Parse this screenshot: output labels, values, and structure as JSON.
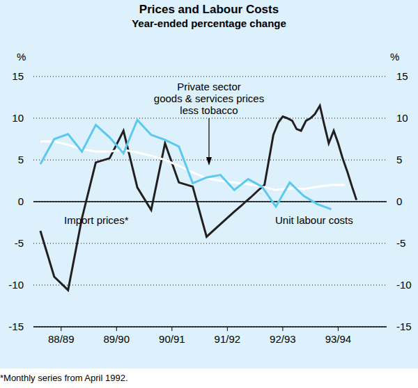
{
  "chart_data": {
    "type": "line",
    "title": "Prices and Labour Costs",
    "subtitle": "Year-ended percentage change",
    "ylabel": "%",
    "y2label": "%",
    "note": "*Monthly series from April 1992.",
    "xlim": [
      1988.5,
      1994.875
    ],
    "xticks": [
      {
        "value": 1989,
        "label": "88/89"
      },
      {
        "value": 1990,
        "label": "89/90"
      },
      {
        "value": 1991,
        "label": "90/91"
      },
      {
        "value": 1992,
        "label": "91/92"
      },
      {
        "value": 1993,
        "label": "92/93"
      },
      {
        "value": 1994,
        "label": "93/94"
      }
    ],
    "ylim": [
      -15,
      15
    ],
    "yticks": [
      -15,
      -10,
      -5,
      0,
      5,
      10,
      15
    ],
    "y2lim": [
      -15,
      15
    ],
    "y2ticks": [
      -15,
      -10,
      -5,
      0,
      5,
      10,
      15
    ],
    "grid": true,
    "series": [
      {
        "name": "Import prices*",
        "color": "#231f20",
        "x": [
          1988.625,
          1988.875,
          1989.125,
          1989.375,
          1989.625,
          1989.875,
          1990.125,
          1990.375,
          1990.625,
          1990.875,
          1991.125,
          1991.375,
          1991.625,
          1991.875,
          1992.125,
          1992.25,
          1992.33,
          1992.42,
          1992.5,
          1992.58,
          1992.67,
          1992.75,
          1992.83,
          1992.92,
          1993.0,
          1993.08,
          1993.17,
          1993.25,
          1993.33,
          1993.42,
          1993.5,
          1993.58,
          1993.67,
          1993.75,
          1993.83,
          1993.92,
          1994.0,
          1994.08,
          1994.17,
          1994.25,
          1994.33
        ],
        "values": [
          -3.5,
          -9,
          -10.6,
          -2,
          4.7,
          5.2,
          8.5,
          1.7,
          -1,
          7,
          2.3,
          1.8,
          -4.2,
          -2.7,
          -1.2,
          -0.5,
          0,
          0.5,
          1.0,
          1.5,
          2.0,
          5.0,
          8.0,
          9.5,
          10.2,
          10.0,
          9.7,
          8.7,
          8.5,
          9.7,
          10.0,
          10.5,
          11.5,
          9.2,
          7.0,
          8.5,
          7.0,
          5.2,
          3.5,
          1.8,
          0.2
        ]
      },
      {
        "name": "Private sector\ngoods & services prices\nless tobacco",
        "color": "#ffffff",
        "x": [
          1988.625,
          1988.875,
          1989.125,
          1989.375,
          1989.625,
          1989.875,
          1990.125,
          1990.375,
          1990.625,
          1990.875,
          1991.125,
          1991.375,
          1991.625,
          1991.875,
          1992.125,
          1992.375,
          1992.625,
          1992.875,
          1993.125,
          1993.375,
          1993.625,
          1993.875,
          1994.125
        ],
        "values": [
          7.2,
          7.2,
          6.8,
          6.3,
          6.0,
          6.0,
          6.2,
          5.9,
          5.5,
          5.0,
          4.3,
          3.5,
          2.8,
          2.5,
          2.3,
          2.1,
          1.8,
          1.4,
          1.6,
          1.5,
          1.8,
          2.0,
          2.0
        ]
      },
      {
        "name": "Unit labour costs",
        "color": "#5bc8f0",
        "x": [
          1988.625,
          1988.875,
          1989.125,
          1989.375,
          1989.625,
          1989.875,
          1990.125,
          1990.375,
          1990.625,
          1990.875,
          1991.125,
          1991.375,
          1991.625,
          1991.875,
          1992.125,
          1992.375,
          1992.625,
          1992.875,
          1993.125,
          1993.375,
          1993.625,
          1993.875
        ],
        "values": [
          4.5,
          7.5,
          8.1,
          6.0,
          9.2,
          7.7,
          5.8,
          9.8,
          8.0,
          7.4,
          6.6,
          2.2,
          2.9,
          3.2,
          1.4,
          2.7,
          1.8,
          -0.6,
          2.3,
          0.7,
          -0.3,
          -0.9
        ]
      }
    ]
  }
}
